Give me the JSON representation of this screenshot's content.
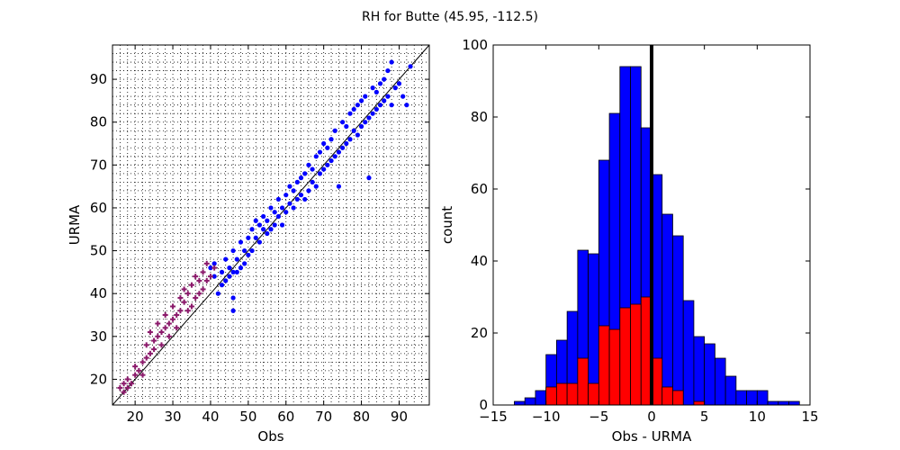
{
  "figure": {
    "title": "RH for Butte (45.95, -112.5)"
  },
  "colors": {
    "blue": "#0000ff",
    "red": "#ff0000",
    "purple": "#8b1a6b",
    "black": "#000000"
  },
  "chart_data": [
    {
      "type": "scatter",
      "title": "",
      "xlabel": "Obs",
      "ylabel": "URMA",
      "xlim": [
        14,
        98
      ],
      "ylim": [
        14,
        98
      ],
      "xticks": [
        20,
        30,
        40,
        50,
        60,
        70,
        80,
        90
      ],
      "yticks": [
        20,
        30,
        40,
        50,
        60,
        70,
        80,
        90
      ],
      "grid": true,
      "reference_line": "y = x",
      "series": [
        {
          "color": "blue",
          "marker": "dot",
          "points": [
            [
              40,
              46
            ],
            [
              41,
              44
            ],
            [
              41,
              47
            ],
            [
              42,
              40
            ],
            [
              43,
              42
            ],
            [
              43,
              45
            ],
            [
              44,
              43
            ],
            [
              44,
              48
            ],
            [
              45,
              46
            ],
            [
              45,
              44
            ],
            [
              46,
              36
            ],
            [
              46,
              39
            ],
            [
              46,
              45
            ],
            [
              46,
              50
            ],
            [
              47,
              45
            ],
            [
              47,
              48
            ],
            [
              48,
              46
            ],
            [
              48,
              52
            ],
            [
              49,
              47
            ],
            [
              49,
              50
            ],
            [
              50,
              49
            ],
            [
              50,
              53
            ],
            [
              51,
              50
            ],
            [
              51,
              55
            ],
            [
              52,
              53
            ],
            [
              52,
              57
            ],
            [
              53,
              52
            ],
            [
              53,
              56
            ],
            [
              54,
              55
            ],
            [
              54,
              58
            ],
            [
              55,
              54
            ],
            [
              55,
              57
            ],
            [
              56,
              55
            ],
            [
              56,
              60
            ],
            [
              57,
              56
            ],
            [
              57,
              59
            ],
            [
              58,
              58
            ],
            [
              58,
              62
            ],
            [
              59,
              56
            ],
            [
              59,
              60
            ],
            [
              60,
              59
            ],
            [
              60,
              63
            ],
            [
              61,
              61
            ],
            [
              61,
              65
            ],
            [
              62,
              60
            ],
            [
              62,
              64
            ],
            [
              63,
              62
            ],
            [
              63,
              66
            ],
            [
              64,
              63
            ],
            [
              64,
              67
            ],
            [
              65,
              62
            ],
            [
              65,
              68
            ],
            [
              66,
              64
            ],
            [
              66,
              70
            ],
            [
              67,
              66
            ],
            [
              67,
              69
            ],
            [
              68,
              65
            ],
            [
              68,
              72
            ],
            [
              69,
              68
            ],
            [
              69,
              73
            ],
            [
              70,
              69
            ],
            [
              70,
              75
            ],
            [
              71,
              70
            ],
            [
              71,
              74
            ],
            [
              72,
              71
            ],
            [
              72,
              76
            ],
            [
              73,
              72
            ],
            [
              73,
              78
            ],
            [
              74,
              73
            ],
            [
              74,
              65
            ],
            [
              75,
              74
            ],
            [
              75,
              80
            ],
            [
              76,
              75
            ],
            [
              76,
              79
            ],
            [
              77,
              76
            ],
            [
              77,
              82
            ],
            [
              78,
              78
            ],
            [
              78,
              83
            ],
            [
              79,
              77
            ],
            [
              79,
              84
            ],
            [
              80,
              79
            ],
            [
              80,
              85
            ],
            [
              81,
              80
            ],
            [
              81,
              86
            ],
            [
              82,
              81
            ],
            [
              82,
              67
            ],
            [
              83,
              82
            ],
            [
              83,
              88
            ],
            [
              84,
              83
            ],
            [
              84,
              87
            ],
            [
              85,
              84
            ],
            [
              85,
              89
            ],
            [
              86,
              85
            ],
            [
              86,
              90
            ],
            [
              87,
              86
            ],
            [
              87,
              92
            ],
            [
              88,
              84
            ],
            [
              88,
              94
            ],
            [
              89,
              88
            ],
            [
              90,
              89
            ],
            [
              91,
              86
            ],
            [
              92,
              84
            ],
            [
              93,
              93
            ]
          ]
        },
        {
          "color": "purple",
          "marker": "cross",
          "points": [
            [
              16,
              18
            ],
            [
              17,
              17
            ],
            [
              17,
              19
            ],
            [
              18,
              18
            ],
            [
              18,
              20
            ],
            [
              19,
              19
            ],
            [
              20,
              21
            ],
            [
              20,
              23
            ],
            [
              21,
              22
            ],
            [
              22,
              24
            ],
            [
              22,
              21
            ],
            [
              23,
              25
            ],
            [
              23,
              28
            ],
            [
              24,
              26
            ],
            [
              24,
              31
            ],
            [
              25,
              27
            ],
            [
              25,
              29
            ],
            [
              26,
              30
            ],
            [
              26,
              33
            ],
            [
              27,
              31
            ],
            [
              27,
              28
            ],
            [
              28,
              32
            ],
            [
              28,
              35
            ],
            [
              29,
              33
            ],
            [
              29,
              30
            ],
            [
              30,
              34
            ],
            [
              30,
              37
            ],
            [
              31,
              35
            ],
            [
              31,
              32
            ],
            [
              32,
              39
            ],
            [
              32,
              36
            ],
            [
              33,
              41
            ],
            [
              33,
              38
            ],
            [
              34,
              40
            ],
            [
              34,
              36
            ],
            [
              35,
              42
            ],
            [
              35,
              37
            ],
            [
              36,
              44
            ],
            [
              36,
              39
            ],
            [
              37,
              43
            ],
            [
              37,
              40
            ],
            [
              38,
              45
            ],
            [
              38,
              41
            ],
            [
              39,
              47
            ],
            [
              39,
              43
            ],
            [
              40,
              44
            ],
            [
              41,
              46
            ]
          ]
        }
      ]
    },
    {
      "type": "bar",
      "title": "",
      "xlabel": "Obs - URMA",
      "ylabel": "count",
      "xlim": [
        -15,
        15
      ],
      "ylim": [
        0,
        100
      ],
      "xticks": [
        -15,
        -10,
        -5,
        0,
        5,
        10,
        15
      ],
      "xtick_labels": [
        "−15",
        "−10",
        "−5",
        "0",
        "5",
        "10",
        "15"
      ],
      "yticks": [
        0,
        20,
        40,
        60,
        80,
        100
      ],
      "bin_width": 1,
      "reference_line": "x = 0",
      "series": [
        {
          "color": "blue",
          "bin_left": [
            -13,
            -12,
            -11,
            -10,
            -9,
            -8,
            -7,
            -6,
            -5,
            -4,
            -3,
            -2,
            -1,
            0,
            1,
            2,
            3,
            4,
            5,
            6,
            7,
            8,
            9,
            10,
            11,
            12,
            13
          ],
          "values": [
            1,
            2,
            4,
            14,
            18,
            26,
            43,
            42,
            68,
            81,
            94,
            94,
            77,
            64,
            53,
            47,
            29,
            19,
            17,
            13,
            8,
            4,
            4,
            4,
            1,
            1,
            1
          ]
        },
        {
          "color": "red",
          "bin_left": [
            -10,
            -9,
            -8,
            -7,
            -6,
            -5,
            -4,
            -3,
            -2,
            -1,
            0,
            1,
            2,
            3,
            4,
            5
          ],
          "values": [
            5,
            6,
            6,
            13,
            6,
            22,
            21,
            27,
            28,
            30,
            13,
            5,
            4,
            0,
            1,
            0
          ]
        }
      ]
    }
  ]
}
